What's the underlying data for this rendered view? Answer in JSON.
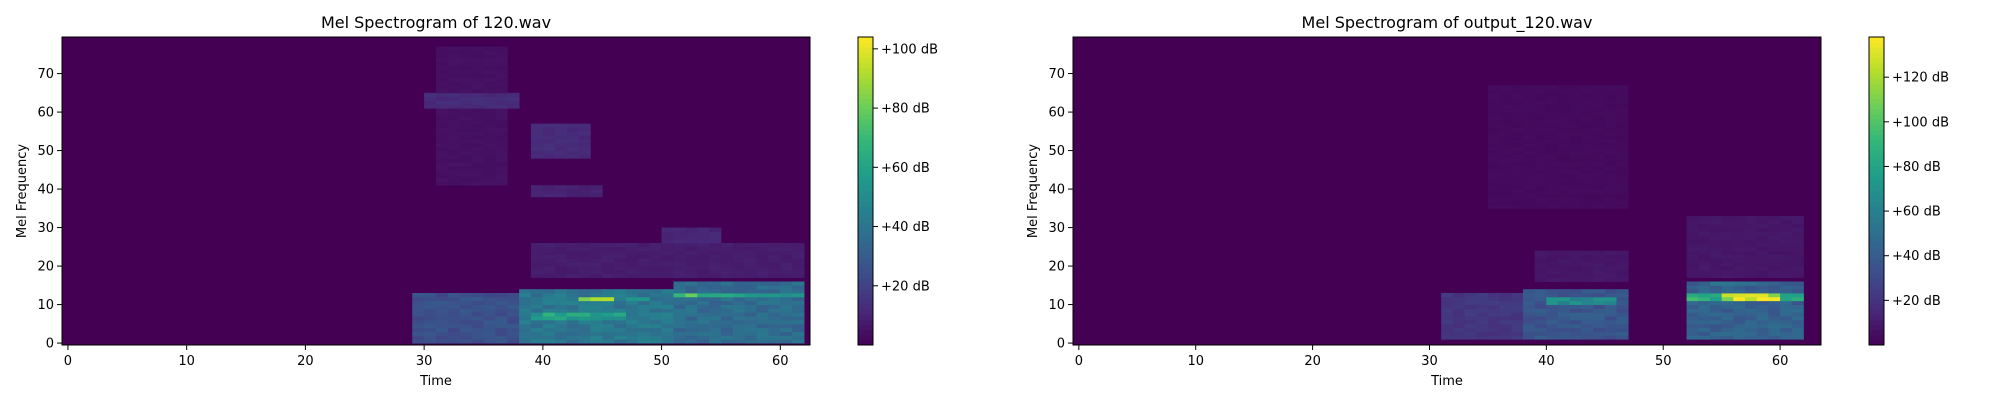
{
  "chart_data": [
    {
      "type": "heatmap",
      "title": "Mel Spectrogram of 120.wav",
      "xlabel": "Time",
      "ylabel": "Mel Frequency",
      "xlim": [
        -0.5,
        62.5
      ],
      "ylim": [
        -0.5,
        79.5
      ],
      "x_ticks": [
        0,
        10,
        20,
        30,
        40,
        50,
        60
      ],
      "y_ticks": [
        0,
        10,
        20,
        30,
        40,
        50,
        60,
        70
      ],
      "colormap": "viridis",
      "colorbar": {
        "vmin": 0,
        "vmax": 104,
        "ticks": [
          20,
          40,
          60,
          80,
          100
        ],
        "tick_labels": [
          "+20 dB",
          "+40 dB",
          "+60 dB",
          "+80 dB",
          "+100 dB"
        ]
      },
      "blobs": [
        {
          "t0": 30,
          "t1": 39,
          "f0": 1,
          "f1": 14,
          "level": 0.28
        },
        {
          "t0": 39,
          "t1": 52,
          "f0": 1,
          "f1": 15,
          "level": 0.45
        },
        {
          "t0": 52,
          "t1": 63,
          "f0": 1,
          "f1": 17,
          "level": 0.4
        },
        {
          "t0": 40,
          "t1": 48,
          "f0": 7,
          "f1": 9,
          "level": 0.65
        },
        {
          "t0": 44,
          "t1": 47,
          "f0": 12,
          "f1": 13,
          "level": 1.0
        },
        {
          "t0": 48,
          "t1": 50,
          "f0": 12,
          "f1": 13,
          "level": 0.55
        },
        {
          "t0": 52,
          "t1": 54,
          "f0": 13,
          "f1": 14,
          "level": 0.85
        },
        {
          "t0": 54,
          "t1": 63,
          "f0": 13,
          "f1": 14,
          "level": 0.62
        },
        {
          "t0": 53,
          "t1": 63,
          "f0": 16,
          "f1": 17,
          "level": 0.38
        },
        {
          "t0": 31,
          "t1": 39,
          "f0": 62,
          "f1": 66,
          "level": 0.14
        },
        {
          "t0": 40,
          "t1": 45,
          "f0": 49,
          "f1": 58,
          "level": 0.14
        },
        {
          "t0": 40,
          "t1": 46,
          "f0": 39,
          "f1": 42,
          "level": 0.11
        },
        {
          "t0": 51,
          "t1": 56,
          "f0": 27,
          "f1": 31,
          "level": 0.12
        },
        {
          "t0": 40,
          "t1": 63,
          "f0": 18,
          "f1": 27,
          "level": 0.09
        },
        {
          "t0": 32,
          "t1": 38,
          "f0": 42,
          "f1": 78,
          "level": 0.05
        }
      ]
    },
    {
      "type": "heatmap",
      "title": "Mel Spectrogram of output_120.wav",
      "xlabel": "Time",
      "ylabel": "Mel Frequency",
      "xlim": [
        -0.5,
        63.5
      ],
      "ylim": [
        -0.5,
        79.5
      ],
      "x_ticks": [
        0,
        10,
        20,
        30,
        40,
        50,
        60
      ],
      "y_ticks": [
        0,
        10,
        20,
        30,
        40,
        50,
        60,
        70
      ],
      "colormap": "viridis",
      "colorbar": {
        "vmin": 0,
        "vmax": 138,
        "ticks": [
          20,
          40,
          60,
          80,
          100,
          120
        ],
        "tick_labels": [
          "+20 dB",
          "+40 dB",
          "+60 dB",
          "+80 dB",
          "+100 dB",
          "+120 dB"
        ]
      },
      "blobs": [
        {
          "t0": 32,
          "t1": 39,
          "f0": 2,
          "f1": 14,
          "level": 0.18
        },
        {
          "t0": 39,
          "t1": 48,
          "f0": 2,
          "f1": 15,
          "level": 0.3
        },
        {
          "t0": 41,
          "t1": 47,
          "f0": 11,
          "f1": 13,
          "level": 0.55
        },
        {
          "t0": 42,
          "t1": 46,
          "f0": 7,
          "f1": 9,
          "level": 0.32
        },
        {
          "t0": 53,
          "t1": 63,
          "f0": 2,
          "f1": 17,
          "level": 0.35
        },
        {
          "t0": 53,
          "t1": 56,
          "f0": 12,
          "f1": 14,
          "level": 0.72
        },
        {
          "t0": 56,
          "t1": 61,
          "f0": 12,
          "f1": 14,
          "level": 1.0
        },
        {
          "t0": 61,
          "t1": 63,
          "f0": 12,
          "f1": 14,
          "level": 0.7
        },
        {
          "t0": 55,
          "t1": 60,
          "f0": 16,
          "f1": 17,
          "level": 0.4
        },
        {
          "t0": 53,
          "t1": 63,
          "f0": 18,
          "f1": 34,
          "level": 0.07
        },
        {
          "t0": 40,
          "t1": 48,
          "f0": 17,
          "f1": 25,
          "level": 0.07
        },
        {
          "t0": 36,
          "t1": 48,
          "f0": 36,
          "f1": 68,
          "level": 0.03
        }
      ]
    }
  ]
}
